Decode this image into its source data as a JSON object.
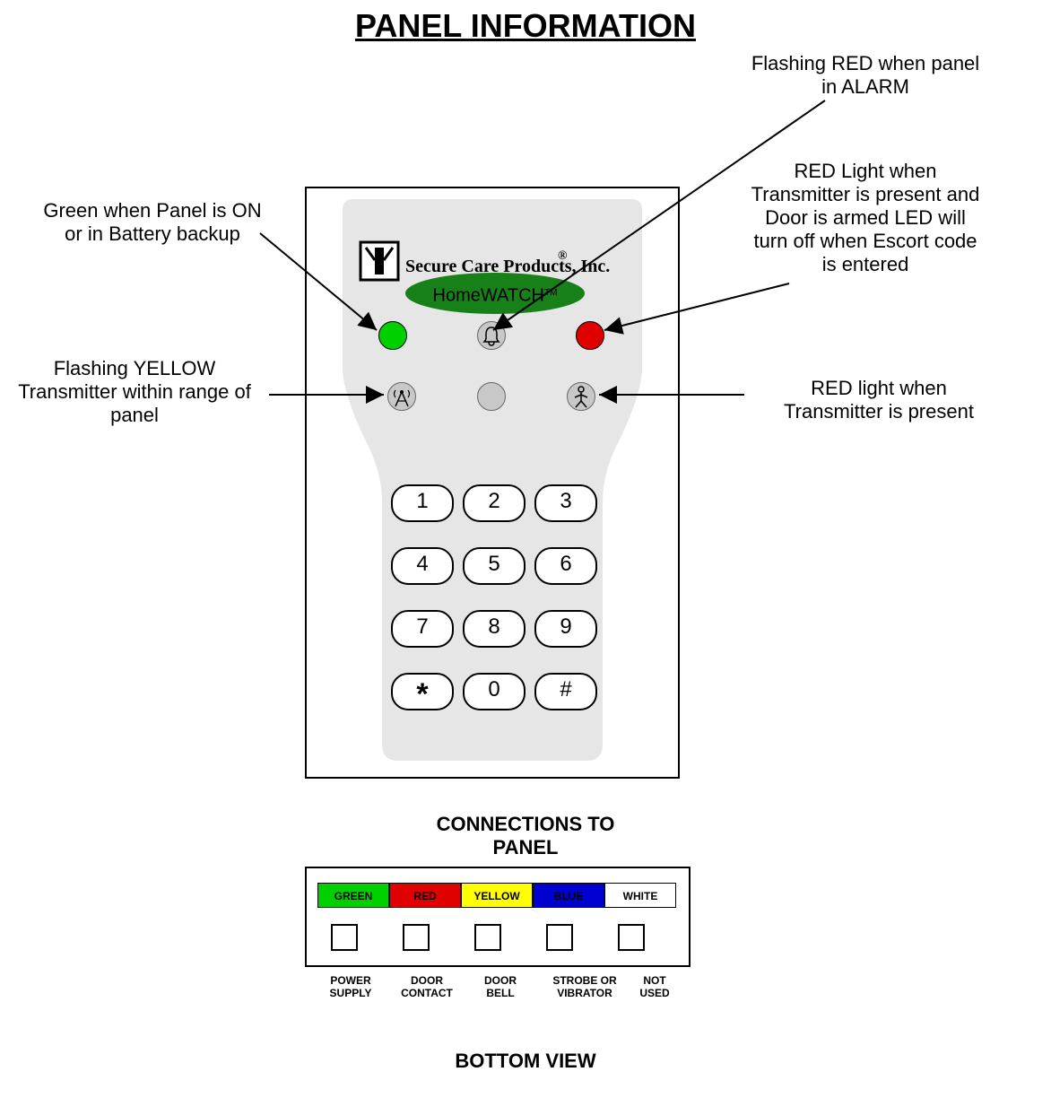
{
  "title": "PANEL INFORMATION",
  "labels": {
    "flash_red": "Flashing RED when panel\nin ALARM",
    "green_on": "Green when Panel is ON\nor in Battery backup",
    "red_tx_door": "RED Light when\nTransmitter is present and\nDoor is armed LED will\nturn off when Escort code\nis entered",
    "flash_yellow": "Flashing YELLOW\nTransmitter within range of\npanel",
    "red_tx_present": "RED light when\nTransmitter is present"
  },
  "panel": {
    "company_text": "Secure Care Products,   Inc.",
    "registered": "®",
    "badge_text": "HomeWATCH",
    "badge_tm": "TM",
    "badge_bg": "#188018",
    "badge_fg": "#000000",
    "body_fill": "#e6e6e6",
    "led_green": "#00d000",
    "led_red": "#e00000",
    "keypad": {
      "rows": [
        [
          "1",
          "2",
          "3"
        ],
        [
          "4",
          "5",
          "6"
        ],
        [
          "7",
          "8",
          "9"
        ],
        [
          "*",
          "0",
          "#"
        ]
      ]
    }
  },
  "connections": {
    "title1": "CONNECTIONS TO",
    "title2": "PANEL",
    "colors": [
      {
        "label": "GREEN",
        "bg": "#00d000",
        "fg": "#000000"
      },
      {
        "label": "RED",
        "bg": "#e00000",
        "fg": "#000000"
      },
      {
        "label": "YELLOW",
        "bg": "#ffff00",
        "fg": "#000000"
      },
      {
        "label": "BLUE",
        "bg": "#0000d0",
        "fg": "#000000"
      },
      {
        "label": "WHITE",
        "bg": "#ffffff",
        "fg": "#000000"
      }
    ],
    "port_labels": [
      "POWER\nSUPPLY",
      "DOOR\nCONTACT",
      "DOOR\nBELL",
      "STROBE OR\nVIBRATOR",
      "NOT\nUSED"
    ]
  },
  "bottom_view": "BOTTOM VIEW"
}
